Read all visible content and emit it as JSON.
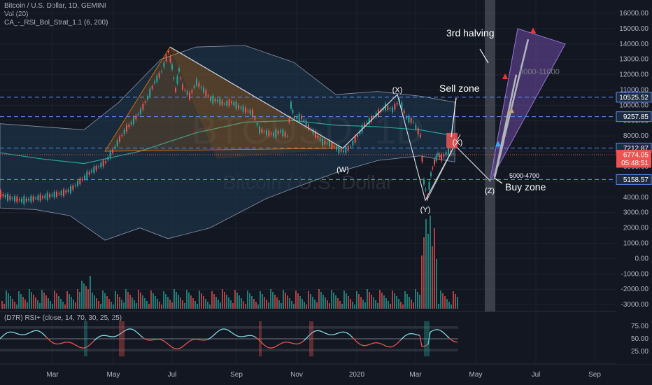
{
  "header": {
    "symbol": "Bitcoin / U.S. Dollar, 1D, GEMINI",
    "vol": "Vol (20)",
    "indicator": "CA_-_RSI_Bol_Strat_1.1 (6, 200)"
  },
  "watermark": {
    "ticker": "BTCUSD, 1D",
    "name": "Bitcoin / U.S. Dollar"
  },
  "rsi_label": "(D7R) RSI+ (close, 14, 70, 30, 25, 25)",
  "colors": {
    "background": "#131722",
    "up": "#26a69a",
    "down": "#ef5350",
    "bollinger_fill": "#1e3a52",
    "mid_line": "#26a69a",
    "triangle": "#f57c00",
    "target_wedge": "#7e57c2",
    "halving_bar": "#5d606b"
  },
  "chart_data": [
    {
      "type": "line",
      "name": "price",
      "y_axis": {
        "ticks": [
          16000,
          15000,
          14000,
          13000,
          12000,
          11000,
          10000,
          9000,
          8000,
          7000,
          6000,
          5000,
          4000,
          3000,
          2000,
          1000,
          0,
          -1000,
          -2000,
          -3000
        ],
        "tick_labels": [
          "16000.00",
          "15000.00",
          "14000.00",
          "13000.00",
          "12000.00",
          "11000.00",
          "10000.00",
          "9000.00",
          "8000.00",
          "7000.00",
          "6000.00",
          "5000.00",
          "4000.00",
          "3000.00",
          "2000.00",
          "1000.00",
          "0.00",
          "-1000.00",
          "-2000.00",
          "-3000.00"
        ]
      },
      "x_axis": {
        "tick_labels": [
          "Mar",
          "May",
          "Jul",
          "Sep",
          "Nov",
          "2020",
          "Mar",
          "May",
          "Jul",
          "Sep"
        ]
      },
      "price_tags": [
        {
          "value": 10525.52,
          "label": "10525.52",
          "style": "blue"
        },
        {
          "value": 9257.85,
          "label": "9257.85",
          "style": "blue"
        },
        {
          "value": 7212.87,
          "label": "7212.87",
          "style": "blue"
        },
        {
          "value": 6774.05,
          "label": "6774.05",
          "style": "red"
        },
        {
          "value": 6250,
          "label": "05:48:51",
          "style": "red"
        },
        {
          "value": 5158.57,
          "label": "5158.57",
          "style": "blue"
        }
      ],
      "horizontal_levels": [
        10525.52,
        9257.85,
        7212.87,
        5158.57
      ],
      "price_path": [
        [
          0,
          4200
        ],
        [
          10,
          4000
        ],
        [
          20,
          3900
        ],
        [
          30,
          3800
        ],
        [
          40,
          3850
        ],
        [
          50,
          3950
        ],
        [
          60,
          4000
        ],
        [
          70,
          4100
        ],
        [
          80,
          4200
        ],
        [
          90,
          4300
        ],
        [
          100,
          4500
        ],
        [
          110,
          4900
        ],
        [
          120,
          5300
        ],
        [
          130,
          5700
        ],
        [
          140,
          6000
        ],
        [
          150,
          6300
        ],
        [
          160,
          7000
        ],
        [
          170,
          7800
        ],
        [
          180,
          8500
        ],
        [
          190,
          9000
        ],
        [
          200,
          9600
        ],
        [
          210,
          10500
        ],
        [
          220,
          11500
        ],
        [
          230,
          12200
        ],
        [
          240,
          13500
        ],
        [
          245,
          12500
        ],
        [
          250,
          11000
        ],
        [
          255,
          12300
        ],
        [
          260,
          11200
        ],
        [
          270,
          10600
        ],
        [
          280,
          11500
        ],
        [
          290,
          11000
        ],
        [
          300,
          10400
        ],
        [
          310,
          10300
        ],
        [
          320,
          10100
        ],
        [
          330,
          10200
        ],
        [
          340,
          9900
        ],
        [
          350,
          9700
        ],
        [
          360,
          9500
        ],
        [
          370,
          8400
        ],
        [
          380,
          8200
        ],
        [
          390,
          8100
        ],
        [
          400,
          8300
        ],
        [
          410,
          8000
        ],
        [
          415,
          10000
        ],
        [
          420,
          9200
        ],
        [
          430,
          9200
        ],
        [
          440,
          8600
        ],
        [
          450,
          8100
        ],
        [
          460,
          7600
        ],
        [
          470,
          7500
        ],
        [
          480,
          7200
        ],
        [
          490,
          7000
        ],
        [
          500,
          7300
        ],
        [
          510,
          8000
        ],
        [
          520,
          8700
        ],
        [
          530,
          9100
        ],
        [
          540,
          9500
        ],
        [
          550,
          9900
        ],
        [
          560,
          9700
        ],
        [
          570,
          10300
        ],
        [
          580,
          9200
        ],
        [
          590,
          8900
        ],
        [
          600,
          8000
        ],
        [
          605,
          5000
        ],
        [
          610,
          4000
        ],
        [
          615,
          5500
        ],
        [
          620,
          6300
        ],
        [
          625,
          6800
        ],
        [
          630,
          6600
        ],
        [
          640,
          7000
        ],
        [
          650,
          6774
        ]
      ]
    },
    {
      "type": "line",
      "name": "rsi",
      "y_axis": {
        "ticks": [
          75,
          50,
          25
        ],
        "tick_labels": [
          "75.00",
          "50.00",
          "25.00"
        ]
      }
    }
  ],
  "annotations": {
    "third_halving": "3rd halving",
    "sell_zone": "Sell zone",
    "buy_zone": "Buy zone",
    "target_range": "9000-11000",
    "buy_range": "5000-4700",
    "wave_x1": "(X)",
    "wave_w": "(W)",
    "wave_y": "(Y)",
    "wave_x2": "(X)",
    "wave_z": "(Z)"
  }
}
